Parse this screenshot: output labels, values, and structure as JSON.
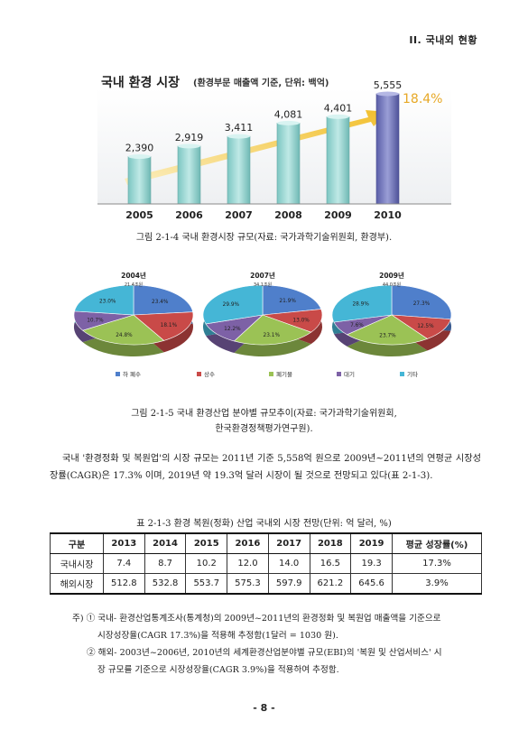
{
  "header": {
    "section": "II. 국내외 현황"
  },
  "figure1": {
    "title": "국내 환경 시장",
    "subtitle": "(환경부문 매출액 기준, 단위: 백억)",
    "growth_label": "18.4%",
    "caption": "그림 2-1-4 국내 환경시장 규모(자료: 국가과학기술위원회, 환경부)."
  },
  "figure2": {
    "caption_line1": "그림 2-1-5 국내 환경산업 분야별 규모추이(자료: 국가과학기술위원회,",
    "caption_line2": "한국환경정책평가연구원)."
  },
  "chart_data": [
    {
      "type": "bar",
      "title": "국내 환경 시장",
      "subtitle": "(환경부문 매출액 기준, 단위: 백억)",
      "categories": [
        "2005",
        "2006",
        "2007",
        "2008",
        "2009",
        "2010"
      ],
      "values": [
        2390,
        2919,
        3411,
        4081,
        4401,
        5555
      ],
      "value_labels": [
        "2,390",
        "2,919",
        "3,411",
        "4,081",
        "4,401",
        "5,555"
      ],
      "annotation": "18.4%",
      "colors": {
        "bar": "#8fd3cf",
        "last_bar": "#6f73b8",
        "arrow": "#f2c744",
        "growth_text": "#e7a826"
      },
      "grid": false
    },
    {
      "type": "pie",
      "layout": "three-pies",
      "legend": [
        "하 폐수",
        "상수",
        "폐기물",
        "대기",
        "기타"
      ],
      "legend_position": "bottom",
      "colors": [
        "#4f7fcb",
        "#c94a48",
        "#9bc255",
        "#7d61a6",
        "#45b6d6"
      ],
      "pies": [
        {
          "title": "2004년",
          "total_label": "21.4조원",
          "values": [
            23.4,
            18.1,
            24.8,
            10.7,
            23.0
          ],
          "labels": [
            "23.4%",
            "18.1%",
            "24.8%",
            "10.7%",
            "23.0%"
          ]
        },
        {
          "title": "2007년",
          "total_label": "34.1조원",
          "values": [
            21.9,
            13.0,
            23.1,
            12.2,
            29.9
          ],
          "labels": [
            "21.9%",
            "13.0%",
            "23.1%",
            "12.2%",
            "29.9%"
          ]
        },
        {
          "title": "2009년",
          "total_label": "44.0조원",
          "values": [
            27.3,
            12.5,
            23.7,
            7.6,
            28.9
          ],
          "labels": [
            "27.3%",
            "12.5%",
            "23.7%",
            "7.6%",
            "28.9%"
          ]
        }
      ]
    }
  ],
  "paragraph": "국내 '환경정화 및 복원업'의 시장 규모는 2011년 기준 5,558억 원으로 2009년~2011년의 연평균 시장성장률(CAGR)은 17.3% 이며, 2019년 약 19.3억 달러 시장이 될 것으로 전망되고 있다(표 2-1-3).",
  "table": {
    "title": "표 2-1-3 환경 복원(정화) 산업 국내외 시장 전망(단위: 억 달러, %)",
    "headers": [
      "구분",
      "2013",
      "2014",
      "2015",
      "2016",
      "2017",
      "2018",
      "2019",
      "평균 성장률(%)"
    ],
    "rows": [
      [
        "국내시장",
        "7.4",
        "8.7",
        "10.2",
        "12.0",
        "14.0",
        "16.5",
        "19.3",
        "17.3%"
      ],
      [
        "해외시장",
        "512.8",
        "532.8",
        "553.7",
        "575.3",
        "597.9",
        "621.2",
        "645.6",
        "3.9%"
      ]
    ]
  },
  "notes": {
    "l1": "주) ① 국내- 환경산업통계조사(통계청)의 2009년~2011년의 환경정화 및 복원업 매출액을 기준으로",
    "l2": "시장성장율(CAGR 17.3%)을 적용해 추정함(1달러 = 1030 원).",
    "l3": "② 해외- 2003년~2006년, 2010년의 세계환경산업분야별 규모(EBI)의 '복원 및 산업서비스' 시",
    "l4": "장 규모를 기준으로 시장성장율(CAGR 3.9%)을 적용하여 추정함."
  },
  "page_number": "- 8 -"
}
